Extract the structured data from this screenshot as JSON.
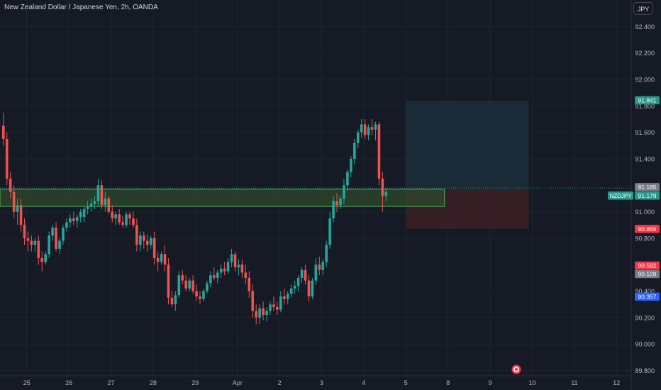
{
  "header": {
    "title": "New Zealand Dollar / Japanese Yen, 2h, OANDA",
    "currency_button": "JPY"
  },
  "colors": {
    "background": "#161a25",
    "grid": "#1f2430",
    "up": "#26a69a",
    "down": "#ef5350",
    "text": "#b2b5be",
    "zone_fill": "#2e4a2c",
    "zone_stroke": "#4caf50",
    "target_fill": "#1b2e3a",
    "stop_fill": "#3a1f26",
    "price_tag": "#22998c",
    "target_tag": "#22998c",
    "stop_tag": "#f23645",
    "blue_tag": "#2962ff",
    "grey_tag": "#787b86"
  },
  "chart_data": {
    "type": "candlestick",
    "symbol": "NZDJPY",
    "ylim": [
      89.76,
      92.6
    ],
    "y_ticks": [
      "92.400",
      "92.200",
      "92.000",
      "91.800",
      "91.600",
      "91.400",
      "91.000",
      "90.800",
      "90.400",
      "90.200",
      "90.000",
      "89.800"
    ],
    "y_tick_values": [
      92.4,
      92.2,
      92.0,
      91.8,
      91.6,
      91.4,
      91.0,
      90.8,
      90.4,
      90.2,
      90.0,
      89.8
    ],
    "x_labels": [
      "25",
      "26",
      "27",
      "28",
      "29",
      "Apr",
      "2",
      "3",
      "4",
      "5",
      "8",
      "9",
      "10",
      "11",
      "12"
    ],
    "x_label_bars": [
      6,
      18,
      30,
      42,
      54,
      66,
      78,
      90,
      102,
      114,
      126,
      138,
      150,
      162,
      174
    ],
    "candles": [
      [
        91.65,
        91.75,
        91.5,
        91.55
      ],
      [
        91.55,
        91.6,
        91.2,
        91.25
      ],
      [
        91.25,
        91.3,
        91.1,
        91.15
      ],
      [
        91.15,
        91.2,
        90.95,
        91.0
      ],
      [
        91.0,
        91.1,
        90.9,
        91.05
      ],
      [
        91.05,
        91.1,
        90.85,
        90.9
      ],
      [
        90.9,
        90.95,
        90.75,
        90.8
      ],
      [
        90.8,
        90.85,
        90.7,
        90.78
      ],
      [
        90.78,
        90.82,
        90.7,
        90.75
      ],
      [
        90.75,
        90.8,
        90.7,
        90.78
      ],
      [
        90.78,
        90.82,
        90.6,
        90.65
      ],
      [
        90.65,
        90.7,
        90.55,
        90.62
      ],
      [
        90.62,
        90.7,
        90.6,
        90.68
      ],
      [
        90.68,
        90.85,
        90.65,
        90.82
      ],
      [
        90.82,
        90.9,
        90.78,
        90.88
      ],
      [
        90.88,
        90.92,
        90.7,
        90.72
      ],
      [
        90.72,
        90.8,
        90.68,
        90.78
      ],
      [
        90.78,
        90.9,
        90.75,
        90.88
      ],
      [
        90.88,
        90.95,
        90.85,
        90.92
      ],
      [
        90.92,
        90.98,
        90.88,
        90.95
      ],
      [
        90.95,
        91.0,
        90.9,
        90.93
      ],
      [
        90.93,
        90.98,
        90.88,
        90.96
      ],
      [
        90.96,
        91.02,
        90.92,
        91.0
      ],
      [
        90.96,
        91.04,
        90.92,
        91.02
      ],
      [
        91.02,
        91.08,
        90.98,
        91.04
      ],
      [
        91.04,
        91.1,
        91.0,
        91.06
      ],
      [
        91.06,
        91.12,
        91.02,
        91.08
      ],
      [
        91.08,
        91.25,
        91.04,
        91.2
      ],
      [
        91.2,
        91.24,
        91.02,
        91.05
      ],
      [
        91.05,
        91.15,
        91.0,
        91.1
      ],
      [
        91.1,
        91.12,
        90.98,
        91.0
      ],
      [
        91.0,
        91.05,
        90.92,
        90.95
      ],
      [
        90.95,
        91.0,
        90.9,
        90.98
      ],
      [
        90.98,
        91.02,
        90.9,
        90.92
      ],
      [
        90.92,
        90.97,
        90.88,
        90.9
      ],
      [
        90.9,
        91.0,
        90.88,
        90.98
      ],
      [
        90.98,
        91.0,
        90.9,
        90.95
      ],
      [
        90.95,
        91.0,
        90.88,
        90.9
      ],
      [
        90.9,
        90.95,
        90.7,
        90.75
      ],
      [
        90.75,
        90.85,
        90.7,
        90.82
      ],
      [
        90.82,
        90.85,
        90.72,
        90.78
      ],
      [
        90.78,
        90.83,
        90.7,
        90.75
      ],
      [
        90.75,
        90.82,
        90.72,
        90.8
      ],
      [
        90.8,
        90.85,
        90.6,
        90.65
      ],
      [
        90.65,
        90.7,
        90.55,
        90.62
      ],
      [
        90.62,
        90.7,
        90.6,
        90.68
      ],
      [
        90.68,
        90.75,
        90.55,
        90.6
      ],
      [
        90.6,
        90.65,
        90.3,
        90.35
      ],
      [
        90.35,
        90.4,
        90.28,
        90.3
      ],
      [
        90.3,
        90.4,
        90.25,
        90.37
      ],
      [
        90.37,
        90.55,
        90.35,
        90.52
      ],
      [
        90.52,
        90.56,
        90.45,
        90.48
      ],
      [
        90.48,
        90.52,
        90.4,
        90.42
      ],
      [
        90.42,
        90.5,
        90.4,
        90.48
      ],
      [
        90.48,
        90.52,
        90.38,
        90.4
      ],
      [
        90.4,
        90.45,
        90.33,
        90.36
      ],
      [
        90.36,
        90.4,
        90.3,
        90.34
      ],
      [
        90.34,
        90.42,
        90.32,
        90.4
      ],
      [
        90.4,
        90.48,
        90.38,
        90.46
      ],
      [
        90.46,
        90.55,
        90.43,
        90.52
      ],
      [
        90.52,
        90.58,
        90.48,
        90.5
      ],
      [
        90.5,
        90.56,
        90.46,
        90.54
      ],
      [
        90.54,
        90.6,
        90.5,
        90.57
      ],
      [
        90.57,
        90.62,
        90.52,
        90.55
      ],
      [
        90.55,
        90.65,
        90.53,
        90.62
      ],
      [
        90.62,
        90.72,
        90.58,
        90.68
      ],
      [
        90.68,
        90.7,
        90.55,
        90.58
      ],
      [
        90.58,
        90.64,
        90.52,
        90.6
      ],
      [
        90.6,
        90.64,
        90.5,
        90.54
      ],
      [
        90.54,
        90.6,
        90.45,
        90.5
      ],
      [
        90.5,
        90.55,
        90.35,
        90.4
      ],
      [
        90.4,
        90.45,
        90.2,
        90.25
      ],
      [
        90.25,
        90.3,
        90.15,
        90.2
      ],
      [
        90.2,
        90.3,
        90.15,
        90.27
      ],
      [
        90.27,
        90.32,
        90.18,
        90.22
      ],
      [
        90.22,
        90.28,
        90.17,
        90.25
      ],
      [
        90.25,
        90.32,
        90.22,
        90.3
      ],
      [
        90.3,
        90.36,
        90.25,
        90.28
      ],
      [
        90.28,
        90.32,
        90.22,
        90.26
      ],
      [
        90.26,
        90.4,
        90.24,
        90.36
      ],
      [
        90.36,
        90.42,
        90.3,
        90.34
      ],
      [
        90.34,
        90.4,
        90.3,
        90.38
      ],
      [
        90.38,
        90.45,
        90.35,
        90.42
      ],
      [
        90.42,
        90.48,
        90.38,
        90.44
      ],
      [
        90.44,
        90.52,
        90.4,
        90.5
      ],
      [
        90.5,
        90.58,
        90.46,
        90.56
      ],
      [
        90.56,
        90.6,
        90.45,
        90.48
      ],
      [
        90.48,
        90.52,
        90.32,
        90.36
      ],
      [
        90.36,
        90.5,
        90.34,
        90.48
      ],
      [
        90.48,
        90.65,
        90.45,
        90.6
      ],
      [
        90.6,
        90.66,
        90.52,
        90.56
      ],
      [
        90.56,
        90.64,
        90.52,
        90.62
      ],
      [
        90.62,
        90.78,
        90.58,
        90.75
      ],
      [
        90.75,
        91.0,
        90.72,
        90.95
      ],
      [
        90.95,
        91.12,
        90.92,
        91.08
      ],
      [
        91.08,
        91.14,
        91.0,
        91.05
      ],
      [
        91.05,
        91.12,
        91.02,
        91.1
      ],
      [
        91.1,
        91.25,
        91.06,
        91.2
      ],
      [
        91.2,
        91.32,
        91.16,
        91.3
      ],
      [
        91.3,
        91.42,
        91.26,
        91.4
      ],
      [
        91.4,
        91.55,
        91.36,
        91.52
      ],
      [
        91.52,
        91.62,
        91.48,
        91.6
      ],
      [
        91.6,
        91.7,
        91.56,
        91.66
      ],
      [
        91.66,
        91.7,
        91.55,
        91.58
      ],
      [
        91.58,
        91.66,
        91.54,
        91.64
      ],
      [
        91.64,
        91.7,
        91.58,
        91.62
      ],
      [
        91.62,
        91.68,
        91.54,
        91.66
      ],
      [
        91.66,
        91.68,
        91.2,
        91.25
      ],
      [
        91.25,
        91.3,
        91.0,
        91.12
      ],
      [
        91.12,
        91.18,
        91.08,
        91.15
      ]
    ],
    "zones": {
      "demand": {
        "top": 91.17,
        "bottom": 91.04,
        "from_bar": -1,
        "to_bar": 126
      },
      "target": {
        "top": 91.84,
        "bottom": 91.17,
        "from_bar": 115,
        "to_bar": 150
      },
      "stop": {
        "top": 91.17,
        "bottom": 90.87,
        "from_bar": 115,
        "to_bar": 150
      }
    },
    "price_labels": [
      {
        "text": "91.841",
        "value": 91.841,
        "role": "target"
      },
      {
        "text": "91.185",
        "value": 91.185,
        "role": "grey"
      },
      {
        "text": "91.179",
        "value": 91.179,
        "role": "price",
        "symbol": "NZDJPY"
      },
      {
        "text": "90.869",
        "value": 90.869,
        "role": "stop"
      },
      {
        "text": "90.592",
        "value": 90.592,
        "role": "stop"
      },
      {
        "text": "90.528",
        "value": 90.528,
        "role": "grey"
      },
      {
        "text": "90.357",
        "value": 90.357,
        "role": "blue"
      }
    ]
  }
}
